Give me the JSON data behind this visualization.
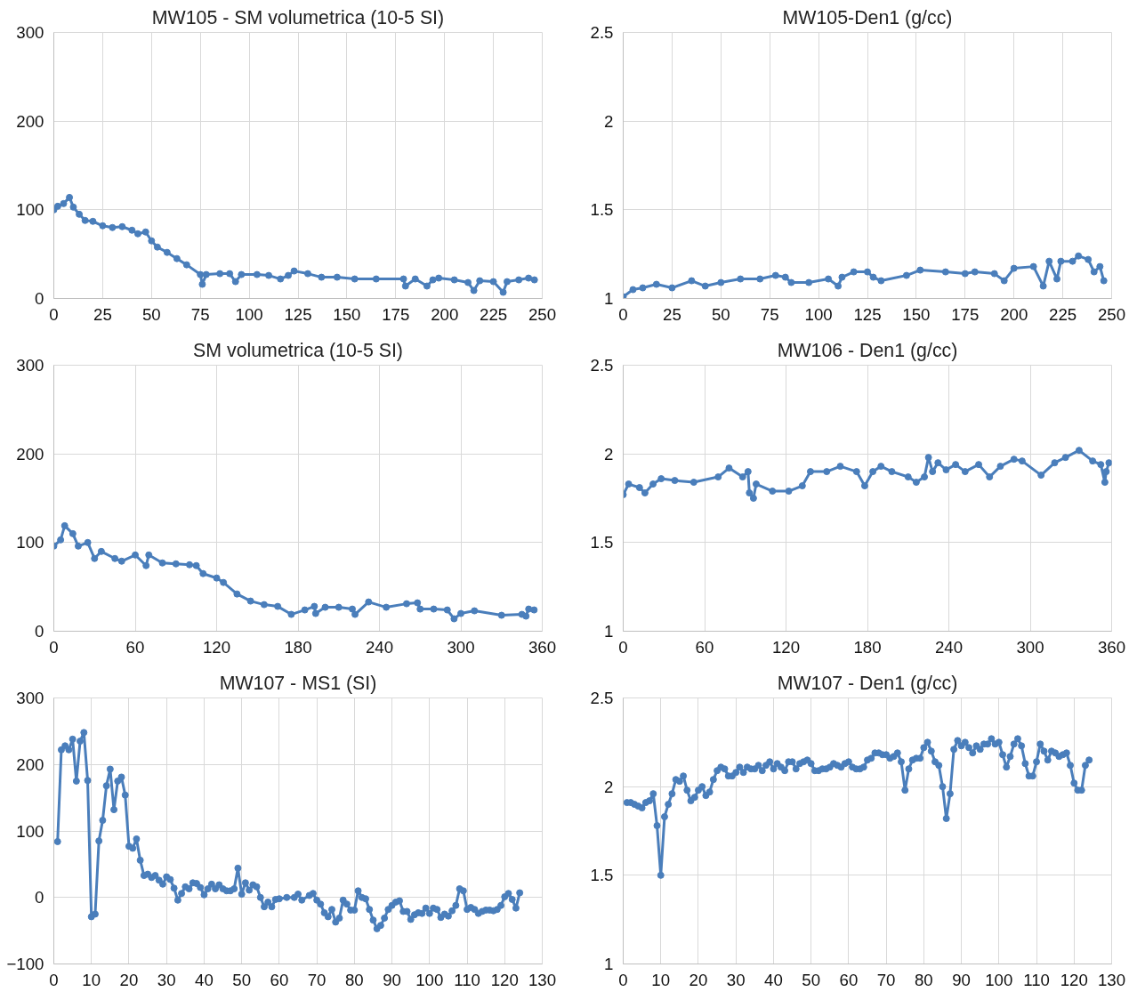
{
  "chart_data": [
    {
      "type": "line",
      "title": "MW105 - SM volumetrica (10-5 SI)",
      "xlim": [
        0,
        250
      ],
      "ylim": [
        0,
        300
      ],
      "xticks": [
        0,
        25,
        50,
        75,
        100,
        125,
        150,
        175,
        200,
        225,
        250
      ],
      "yticks": [
        0,
        100,
        200,
        300
      ],
      "grid": true,
      "marker": "circle",
      "line_style": "solid",
      "x": [
        0,
        2,
        5,
        8,
        10,
        13,
        16,
        20,
        25,
        30,
        35,
        40,
        43,
        47,
        50,
        53,
        58,
        63,
        68,
        75,
        76,
        78,
        85,
        90,
        93,
        96,
        104,
        110,
        116,
        120,
        123,
        130,
        137,
        145,
        154,
        165,
        179,
        180,
        185,
        191,
        194,
        197,
        205,
        212,
        215,
        218,
        225,
        230,
        232,
        238,
        243,
        246
      ],
      "series": [
        {
          "color": "#4a7ebb",
          "values": [
            100,
            104,
            107,
            114,
            103,
            95,
            88,
            87,
            82,
            80,
            81,
            77,
            73,
            75,
            65,
            58,
            52,
            45,
            38,
            27,
            16,
            27,
            28,
            28,
            19,
            27,
            27,
            26,
            22,
            26,
            31,
            28,
            24,
            24,
            22,
            22,
            22,
            14,
            22,
            14,
            21,
            23,
            21,
            18,
            9,
            20,
            19,
            7,
            19,
            21,
            23,
            21
          ]
        }
      ]
    },
    {
      "type": "line",
      "title": "MW105-Den1 (g/cc)",
      "xlim": [
        0,
        250
      ],
      "ylim": [
        1,
        2.5
      ],
      "xticks": [
        0,
        25,
        50,
        75,
        100,
        125,
        150,
        175,
        200,
        225,
        250
      ],
      "yticks": [
        1,
        1.5,
        2,
        2.5
      ],
      "grid": true,
      "marker": "circle",
      "line_style": "solid",
      "x": [
        0,
        5,
        10,
        17,
        25,
        35,
        42,
        50,
        60,
        70,
        78,
        83,
        86,
        95,
        105,
        110,
        112,
        118,
        125,
        128,
        132,
        145,
        152,
        165,
        175,
        180,
        190,
        195,
        200,
        210,
        215,
        218,
        222,
        224,
        230,
        233,
        238,
        241,
        244,
        246
      ],
      "series": [
        {
          "color": "#4a7ebb",
          "values": [
            1.01,
            1.05,
            1.06,
            1.08,
            1.06,
            1.1,
            1.07,
            1.09,
            1.11,
            1.11,
            1.13,
            1.12,
            1.09,
            1.09,
            1.11,
            1.07,
            1.12,
            1.15,
            1.15,
            1.12,
            1.1,
            1.13,
            1.16,
            1.15,
            1.14,
            1.15,
            1.14,
            1.1,
            1.17,
            1.18,
            1.07,
            1.21,
            1.11,
            1.21,
            1.21,
            1.24,
            1.22,
            1.15,
            1.18,
            1.1
          ]
        }
      ]
    },
    {
      "type": "line",
      "title": "SM volumetrica (10-5 SI)",
      "xlim": [
        0,
        360
      ],
      "ylim": [
        0,
        300
      ],
      "xticks": [
        0,
        60,
        120,
        180,
        240,
        300,
        360
      ],
      "yticks": [
        0,
        100,
        200,
        300
      ],
      "grid": true,
      "marker": "circle",
      "line_style": "solid",
      "x": [
        0,
        5,
        8,
        14,
        18,
        25,
        30,
        35,
        45,
        50,
        60,
        68,
        70,
        80,
        90,
        100,
        105,
        110,
        120,
        125,
        135,
        145,
        155,
        165,
        175,
        185,
        192,
        193,
        200,
        210,
        220,
        222,
        232,
        245,
        260,
        268,
        270,
        280,
        290,
        295,
        300,
        310,
        330,
        345,
        348,
        350,
        354
      ],
      "series": [
        {
          "color": "#4a7ebb",
          "values": [
            96,
            103,
            119,
            110,
            96,
            100,
            82,
            90,
            82,
            79,
            86,
            74,
            86,
            77,
            76,
            75,
            74,
            65,
            60,
            55,
            42,
            34,
            30,
            28,
            19,
            24,
            28,
            20,
            27,
            27,
            25,
            19,
            33,
            27,
            31,
            32,
            25,
            25,
            24,
            14,
            20,
            23,
            18,
            19,
            17,
            25,
            24
          ]
        }
      ]
    },
    {
      "type": "line",
      "title": "MW106 - Den1 (g/cc)",
      "xlim": [
        0,
        360
      ],
      "ylim": [
        1,
        2.5
      ],
      "xticks": [
        0,
        60,
        120,
        180,
        240,
        300,
        360
      ],
      "yticks": [
        1,
        1.5,
        2,
        2.5
      ],
      "grid": true,
      "marker": "circle",
      "line_style": "solid",
      "x": [
        0,
        4,
        12,
        16,
        22,
        28,
        38,
        52,
        70,
        78,
        88,
        92,
        93,
        96,
        98,
        110,
        122,
        132,
        138,
        150,
        160,
        172,
        178,
        184,
        190,
        198,
        210,
        216,
        222,
        225,
        228,
        232,
        238,
        245,
        252,
        262,
        270,
        278,
        288,
        294,
        308,
        318,
        326,
        336,
        346,
        352,
        355,
        356,
        358
      ],
      "series": [
        {
          "color": "#4a7ebb",
          "values": [
            1.77,
            1.83,
            1.81,
            1.78,
            1.83,
            1.86,
            1.85,
            1.84,
            1.87,
            1.92,
            1.87,
            1.9,
            1.78,
            1.75,
            1.83,
            1.79,
            1.79,
            1.82,
            1.9,
            1.9,
            1.93,
            1.9,
            1.82,
            1.9,
            1.93,
            1.9,
            1.87,
            1.84,
            1.87,
            1.98,
            1.9,
            1.95,
            1.91,
            1.94,
            1.9,
            1.94,
            1.87,
            1.93,
            1.97,
            1.96,
            1.88,
            1.95,
            1.98,
            2.02,
            1.96,
            1.94,
            1.84,
            1.9,
            1.95
          ]
        }
      ]
    },
    {
      "type": "line",
      "title": "MW107 - MS1 (SI)",
      "xlim": [
        0,
        130
      ],
      "ylim": [
        -100,
        300
      ],
      "xticks": [
        0,
        10,
        20,
        30,
        40,
        50,
        60,
        70,
        80,
        90,
        100,
        110,
        120,
        130
      ],
      "yticks": [
        -100,
        0,
        100,
        200,
        300
      ],
      "grid": true,
      "marker": "circle",
      "line_style": "solid",
      "x": [
        1,
        2,
        3,
        4,
        5,
        6,
        7,
        8,
        9,
        10,
        11,
        12,
        13,
        14,
        15,
        16,
        17,
        18,
        19,
        20,
        21,
        22,
        23,
        24,
        25,
        26,
        27,
        28,
        29,
        30,
        31,
        32,
        33,
        34,
        35,
        36,
        37,
        38,
        39,
        40,
        41,
        42,
        43,
        44,
        45,
        46,
        47,
        48,
        49,
        50,
        51,
        52,
        53,
        54,
        55,
        56,
        57,
        58,
        59,
        60,
        62,
        64,
        65,
        66,
        68,
        69,
        70,
        71,
        72,
        73,
        74,
        75,
        76,
        77,
        78,
        79,
        80,
        81,
        82,
        83,
        84,
        85,
        86,
        87,
        88,
        89,
        90,
        91,
        92,
        93,
        94,
        95,
        96,
        97,
        98,
        99,
        100,
        101,
        102,
        103,
        104,
        105,
        106,
        107,
        108,
        109,
        110,
        111,
        112,
        113,
        114,
        115,
        116,
        117,
        118,
        119,
        120,
        121,
        122,
        123,
        124
      ],
      "series": [
        {
          "color": "#4a7ebb",
          "values": [
            84,
            222,
            228,
            222,
            238,
            175,
            235,
            248,
            176,
            -29,
            -25,
            85,
            116,
            168,
            193,
            132,
            175,
            181,
            154,
            77,
            74,
            88,
            56,
            33,
            35,
            30,
            33,
            26,
            20,
            31,
            27,
            14,
            -4,
            6,
            16,
            13,
            22,
            21,
            15,
            4,
            13,
            20,
            13,
            19,
            13,
            10,
            10,
            13,
            44,
            5,
            22,
            11,
            19,
            16,
            0,
            -14,
            -7,
            -14,
            -3,
            -2,
            0,
            0,
            5,
            -4,
            3,
            6,
            -4,
            -10,
            -23,
            -29,
            -18,
            -37,
            -31,
            -4,
            -10,
            -19,
            -19,
            10,
            0,
            -2,
            -18,
            -34,
            -47,
            -42,
            -31,
            -18,
            -12,
            -7,
            -5,
            -21,
            -21,
            -33,
            -26,
            -23,
            -24,
            -16,
            -24,
            -16,
            -18,
            -30,
            -25,
            -28,
            -20,
            -12,
            13,
            10,
            -18,
            -15,
            -18,
            -24,
            -21,
            -19,
            -19,
            -20,
            -18,
            -12,
            1,
            6,
            -3,
            -16,
            7
          ]
        }
      ]
    },
    {
      "type": "line",
      "title": "MW107 - Den1 (g/cc)",
      "xlim": [
        0,
        130
      ],
      "ylim": [
        1,
        2.5
      ],
      "xticks": [
        0,
        10,
        20,
        30,
        40,
        50,
        60,
        70,
        80,
        90,
        100,
        110,
        120,
        130
      ],
      "yticks": [
        1,
        1.5,
        2,
        2.5
      ],
      "grid": true,
      "marker": "circle",
      "line_style": "solid",
      "x": [
        1,
        2,
        3,
        4,
        5,
        6,
        7,
        8,
        9,
        10,
        11,
        12,
        13,
        14,
        15,
        16,
        17,
        18,
        19,
        20,
        21,
        22,
        23,
        24,
        25,
        26,
        27,
        28,
        29,
        30,
        31,
        32,
        33,
        34,
        35,
        36,
        37,
        38,
        39,
        40,
        41,
        42,
        43,
        44,
        45,
        46,
        47,
        48,
        49,
        50,
        51,
        52,
        53,
        54,
        55,
        56,
        57,
        58,
        59,
        60,
        61,
        62,
        63,
        64,
        65,
        66,
        67,
        68,
        69,
        70,
        71,
        72,
        73,
        74,
        75,
        76,
        77,
        78,
        79,
        80,
        81,
        82,
        83,
        84,
        85,
        86,
        87,
        88,
        89,
        90,
        91,
        92,
        93,
        94,
        95,
        96,
        97,
        98,
        99,
        100,
        101,
        102,
        103,
        104,
        105,
        106,
        107,
        108,
        109,
        110,
        111,
        112,
        113,
        114,
        115,
        116,
        117,
        118,
        119,
        120,
        121,
        122,
        123,
        124
      ],
      "series": [
        {
          "color": "#4a7ebb",
          "values": [
            1.91,
            1.91,
            1.9,
            1.89,
            1.88,
            1.91,
            1.92,
            1.96,
            1.78,
            1.5,
            1.83,
            1.9,
            1.96,
            2.04,
            2.03,
            2.06,
            1.98,
            1.92,
            1.94,
            1.98,
            2.0,
            1.95,
            1.97,
            2.04,
            2.09,
            2.11,
            2.1,
            2.06,
            2.06,
            2.08,
            2.11,
            2.08,
            2.11,
            2.1,
            2.1,
            2.12,
            2.09,
            2.12,
            2.14,
            2.1,
            2.13,
            2.11,
            2.09,
            2.14,
            2.14,
            2.1,
            2.13,
            2.14,
            2.15,
            2.13,
            2.09,
            2.09,
            2.1,
            2.1,
            2.11,
            2.13,
            2.12,
            2.11,
            2.13,
            2.14,
            2.11,
            2.1,
            2.1,
            2.11,
            2.15,
            2.16,
            2.19,
            2.19,
            2.18,
            2.18,
            2.16,
            2.17,
            2.19,
            2.14,
            1.98,
            2.1,
            2.15,
            2.16,
            2.16,
            2.22,
            2.25,
            2.2,
            2.14,
            2.12,
            2.0,
            1.82,
            1.96,
            2.21,
            2.26,
            2.23,
            2.25,
            2.22,
            2.19,
            2.23,
            2.21,
            2.24,
            2.24,
            2.27,
            2.24,
            2.25,
            2.18,
            2.11,
            2.17,
            2.24,
            2.27,
            2.23,
            2.13,
            2.06,
            2.06,
            2.14,
            2.24,
            2.2,
            2.15,
            2.2,
            2.19,
            2.17,
            2.18,
            2.19,
            2.12,
            2.02,
            1.98,
            1.98,
            2.12,
            2.15
          ]
        }
      ]
    }
  ]
}
